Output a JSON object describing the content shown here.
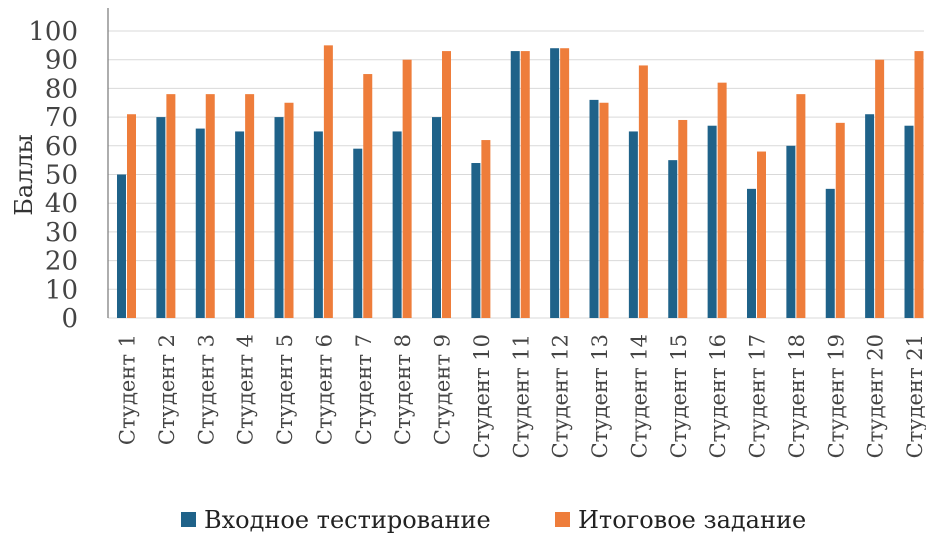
{
  "chart_data": {
    "type": "bar",
    "ylabel": "Баллы",
    "ylim": [
      0,
      100
    ],
    "yticks": [
      0,
      10,
      20,
      30,
      40,
      50,
      60,
      70,
      80,
      90,
      100
    ],
    "grid": true,
    "legend_position": "bottom",
    "categories": [
      "Студент 1",
      "Студент 2",
      "Студент 3",
      "Студент 4",
      "Студент 5",
      "Студент 6",
      "Студент 7",
      "Студент 8",
      "Студент 9",
      "Студент 10",
      "Студент 11",
      "Студент 12",
      "Студент 13",
      "Студент 14",
      "Студент 15",
      "Студент 16",
      "Студент 17",
      "Студент 18",
      "Студент 19",
      "Студент 20",
      "Студент 21"
    ],
    "series": [
      {
        "name": "Входное тестирование",
        "color": "#1f6289",
        "values": [
          50,
          70,
          66,
          65,
          70,
          65,
          59,
          65,
          70,
          54,
          93,
          94,
          76,
          65,
          55,
          67,
          45,
          60,
          45,
          71,
          67
        ]
      },
      {
        "name": "Итоговое задание",
        "color": "#ee7d3b",
        "values": [
          71,
          78,
          78,
          78,
          75,
          95,
          85,
          90,
          93,
          62,
          93,
          94,
          75,
          88,
          69,
          82,
          58,
          78,
          68,
          90,
          93
        ]
      }
    ]
  }
}
